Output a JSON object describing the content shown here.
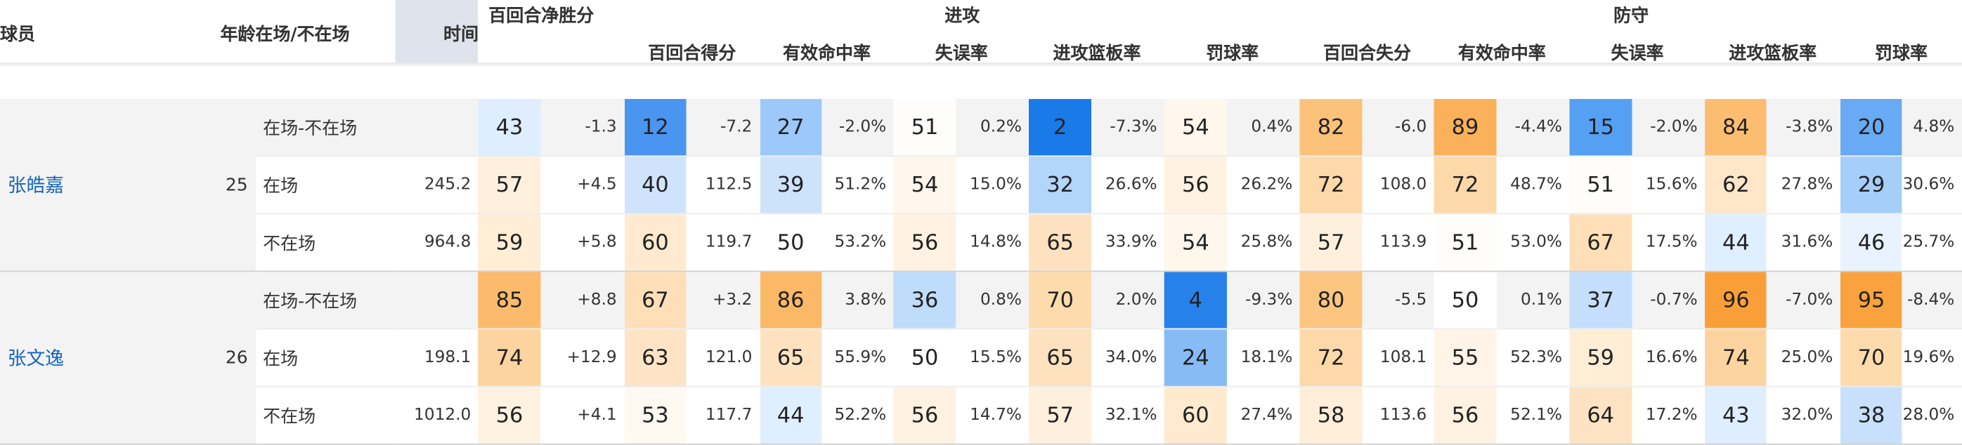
{
  "header": {
    "player": "球员",
    "age": "年龄",
    "status": "在场/不在场",
    "time": "时间",
    "net_rating": "百回合净胜分",
    "offense": "进攻",
    "defense": "防守",
    "off_cols": [
      "百回合得分",
      "有效命中率",
      "失误率",
      "进攻篮板率",
      "罚球率"
    ],
    "def_cols": [
      "百回合失分",
      "有效命中率",
      "失误率",
      "进攻篮板率",
      "罚球率"
    ]
  },
  "players": [
    {
      "name": "张皓嘉",
      "age": "25",
      "rows": [
        {
          "status": "在场-不在场",
          "time": "",
          "cells": [
            {
              "rank": "43",
              "value": "-1.3",
              "color": "#deeeff"
            },
            {
              "rank": "12",
              "value": "-7.2",
              "color": "#4a95f0"
            },
            {
              "rank": "27",
              "value": "-2.0%",
              "color": "#9cc8fa"
            },
            {
              "rank": "51",
              "value": "0.2%",
              "color": "#fffdfa"
            },
            {
              "rank": "2",
              "value": "-7.3%",
              "color": "#1a7ae8"
            },
            {
              "rank": "54",
              "value": "0.4%",
              "color": "#fff6ec"
            },
            {
              "rank": "82",
              "value": "-6.0",
              "color": "#fcc27a"
            },
            {
              "rank": "89",
              "value": "-4.4%",
              "color": "#fbb05a"
            },
            {
              "rank": "15",
              "value": "-2.0%",
              "color": "#55a0f2"
            },
            {
              "rank": "84",
              "value": "-3.8%",
              "color": "#fcbd70"
            },
            {
              "rank": "20",
              "value": "4.8%",
              "color": "#68aaf3"
            }
          ]
        },
        {
          "status": "在场",
          "time": "245.2",
          "cells": [
            {
              "rank": "57",
              "value": "+4.5",
              "color": "#fff0dd"
            },
            {
              "rank": "40",
              "value": "112.5",
              "color": "#cfe4fc"
            },
            {
              "rank": "39",
              "value": "51.2%",
              "color": "#cde3fc"
            },
            {
              "rank": "54",
              "value": "15.0%",
              "color": "#fff6ec"
            },
            {
              "rank": "32",
              "value": "26.6%",
              "color": "#b2d5fa"
            },
            {
              "rank": "56",
              "value": "26.2%",
              "color": "#fff2e2"
            },
            {
              "rank": "72",
              "value": "108.0",
              "color": "#fdd8a9"
            },
            {
              "rank": "72",
              "value": "48.7%",
              "color": "#fdd8a9"
            },
            {
              "rank": "51",
              "value": "15.6%",
              "color": "#fffdfa"
            },
            {
              "rank": "62",
              "value": "27.8%",
              "color": "#fee6c9"
            },
            {
              "rank": "29",
              "value": "30.6%",
              "color": "#a6cefa"
            }
          ]
        },
        {
          "status": "不在场",
          "time": "964.8",
          "cells": [
            {
              "rank": "59",
              "value": "+5.8",
              "color": "#ffedd6"
            },
            {
              "rank": "60",
              "value": "119.7",
              "color": "#ffeacf"
            },
            {
              "rank": "50",
              "value": "53.2%",
              "color": "#ffffff"
            },
            {
              "rank": "56",
              "value": "14.8%",
              "color": "#fff2e2"
            },
            {
              "rank": "65",
              "value": "33.9%",
              "color": "#fee2bf"
            },
            {
              "rank": "54",
              "value": "25.8%",
              "color": "#fff6ec"
            },
            {
              "rank": "57",
              "value": "113.9",
              "color": "#fff0dd"
            },
            {
              "rank": "51",
              "value": "53.0%",
              "color": "#fffdfa"
            },
            {
              "rank": "67",
              "value": "17.5%",
              "color": "#fedfb8"
            },
            {
              "rank": "44",
              "value": "31.6%",
              "color": "#e0efff"
            },
            {
              "rank": "46",
              "value": "25.7%",
              "color": "#e8f3ff"
            }
          ]
        }
      ]
    },
    {
      "name": "张文逸",
      "age": "26",
      "rows": [
        {
          "status": "在场-不在场",
          "time": "",
          "cells": [
            {
              "rank": "85",
              "value": "+8.8",
              "color": "#fcbb6c"
            },
            {
              "rank": "67",
              "value": "+3.2",
              "color": "#fedfb8"
            },
            {
              "rank": "86",
              "value": "3.8%",
              "color": "#fbb866"
            },
            {
              "rank": "36",
              "value": "0.8%",
              "color": "#c0dcfb"
            },
            {
              "rank": "70",
              "value": "2.0%",
              "color": "#fddbad"
            },
            {
              "rank": "4",
              "value": "-9.3%",
              "color": "#2781ea"
            },
            {
              "rank": "80",
              "value": "-5.5",
              "color": "#fcc580"
            },
            {
              "rank": "50",
              "value": "0.1%",
              "color": "#ffffff"
            },
            {
              "rank": "37",
              "value": "-0.7%",
              "color": "#c4defb"
            },
            {
              "rank": "96",
              "value": "-7.0%",
              "color": "#fa9f38"
            },
            {
              "rank": "95",
              "value": "-8.4%",
              "color": "#faa23d"
            }
          ]
        },
        {
          "status": "在场",
          "time": "198.1",
          "cells": [
            {
              "rank": "74",
              "value": "+12.9",
              "color": "#fdd4a0"
            },
            {
              "rank": "63",
              "value": "121.0",
              "color": "#fee4c4"
            },
            {
              "rank": "65",
              "value": "55.9%",
              "color": "#fee2bf"
            },
            {
              "rank": "50",
              "value": "15.5%",
              "color": "#ffffff"
            },
            {
              "rank": "65",
              "value": "34.0%",
              "color": "#fee2bf"
            },
            {
              "rank": "24",
              "value": "18.1%",
              "color": "#86bbf6"
            },
            {
              "rank": "72",
              "value": "108.1",
              "color": "#fdd8a9"
            },
            {
              "rank": "55",
              "value": "52.3%",
              "color": "#fff4e7"
            },
            {
              "rank": "59",
              "value": "16.6%",
              "color": "#ffedd6"
            },
            {
              "rank": "74",
              "value": "25.0%",
              "color": "#fdd4a0"
            },
            {
              "rank": "70",
              "value": "19.6%",
              "color": "#fddbad"
            }
          ]
        },
        {
          "status": "不在场",
          "time": "1012.0",
          "cells": [
            {
              "rank": "56",
              "value": "+4.1",
              "color": "#fff2e2"
            },
            {
              "rank": "53",
              "value": "117.7",
              "color": "#fff9f1"
            },
            {
              "rank": "44",
              "value": "52.2%",
              "color": "#e0efff"
            },
            {
              "rank": "56",
              "value": "14.7%",
              "color": "#fff2e2"
            },
            {
              "rank": "57",
              "value": "32.1%",
              "color": "#fff0dd"
            },
            {
              "rank": "60",
              "value": "27.4%",
              "color": "#ffeacf"
            },
            {
              "rank": "58",
              "value": "113.6",
              "color": "#ffeed9"
            },
            {
              "rank": "56",
              "value": "52.1%",
              "color": "#fff2e2"
            },
            {
              "rank": "64",
              "value": "17.2%",
              "color": "#fee3c2"
            },
            {
              "rank": "43",
              "value": "32.0%",
              "color": "#deeeff"
            },
            {
              "rank": "38",
              "value": "28.0%",
              "color": "#c8e0fc"
            }
          ]
        }
      ]
    }
  ]
}
